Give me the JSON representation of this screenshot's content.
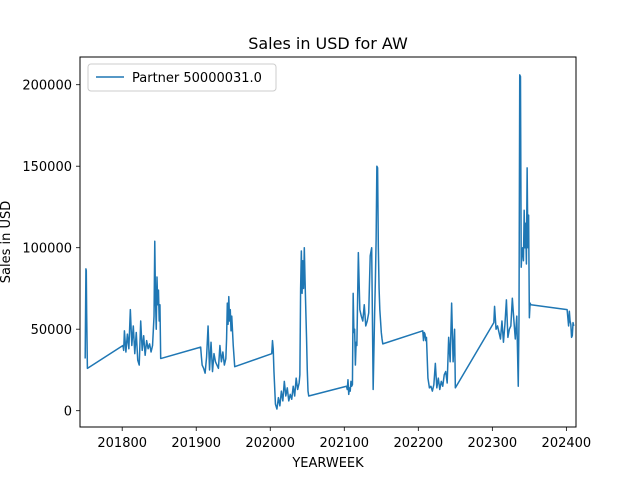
{
  "chart_data": {
    "type": "line",
    "title": "Sales in USD for AW",
    "xlabel": "YEARWEEK",
    "ylabel": "Sales in USD",
    "xlim": [
      201743,
      202413
    ],
    "ylim": [
      -10000,
      217000
    ],
    "xticks": [
      201800,
      201900,
      202000,
      202100,
      202200,
      202300,
      202400
    ],
    "yticks": [
      0,
      50000,
      100000,
      150000,
      200000
    ],
    "xtick_labels": [
      "201800",
      "201900",
      "202000",
      "202100",
      "202200",
      "202300",
      "202400"
    ],
    "ytick_labels": [
      "0",
      "50000",
      "100000",
      "150000",
      "200000"
    ],
    "grid": false,
    "legend": "top-left",
    "series": [
      {
        "name": "Partner 50000031.0",
        "color": "#1f77b4",
        "x": [
          201750,
          201751,
          201751.5,
          201752,
          201753,
          201801,
          201802,
          201803,
          201805,
          201807,
          201809,
          201811,
          201813,
          201815,
          201817,
          201819,
          201821,
          201823,
          201825,
          201827,
          201829,
          201831,
          201833,
          201835,
          201837,
          201839,
          201841,
          201843,
          201844,
          201845,
          201846,
          201847,
          201848,
          201849,
          201850,
          201851,
          201852,
          201906,
          201907,
          201908,
          201910,
          201912,
          201914,
          201916,
          201918,
          201920,
          201922,
          201924,
          201926,
          201928,
          201930,
          201932,
          201934,
          201936,
          201938,
          201940,
          201941,
          201942,
          201943,
          201944,
          201945,
          201946,
          201947,
          201948,
          201950,
          201952,
          202002,
          202003,
          202004,
          202005,
          202007,
          202009,
          202011,
          202013,
          202015,
          202017,
          202019,
          202021,
          202023,
          202025,
          202027,
          202029,
          202031,
          202033,
          202035,
          202037,
          202039,
          202040,
          202041,
          202042,
          202043,
          202044,
          202045,
          202046,
          202047,
          202048,
          202049,
          202050,
          202051,
          202052,
          202103,
          202104,
          202105,
          202106,
          202107,
          202108,
          202109,
          202110,
          202111,
          202112,
          202113,
          202114,
          202115,
          202116,
          202117,
          202119,
          202121,
          202123,
          202125,
          202127,
          202129,
          202131,
          202133,
          202135,
          202137,
          202139,
          202141,
          202142,
          202143,
          202144,
          202145,
          202146,
          202147,
          202148,
          202149,
          202150,
          202151,
          202152,
          202206,
          202207,
          202208,
          202209,
          202210,
          202211,
          202213,
          202215,
          202217,
          202219,
          202221,
          202223,
          202225,
          202227,
          202229,
          202231,
          202233,
          202235,
          202237,
          202239,
          202241,
          202243,
          202245,
          202247,
          202249,
          202250,
          202302,
          202303,
          202305,
          202307,
          202309,
          202311,
          202313,
          202315,
          202317,
          202319,
          202321,
          202323,
          202325,
          202327,
          202329,
          202331,
          202333,
          202335,
          202336,
          202337,
          202338,
          202339,
          202340,
          202341,
          202342,
          202343,
          202344,
          202345,
          202346,
          202347,
          202348,
          202349,
          202350,
          202351,
          202352,
          202401,
          202402,
          202403,
          202404,
          202405,
          202406,
          202407,
          202408,
          202409,
          202410
        ],
        "y": [
          32000,
          87000,
          86000,
          60000,
          26000,
          40000,
          37000,
          49000,
          36000,
          47000,
          38000,
          62000,
          40000,
          52000,
          35000,
          48000,
          31000,
          28000,
          55000,
          37000,
          46000,
          34000,
          43000,
          38000,
          41000,
          36000,
          40000,
          58000,
          104000,
          68000,
          50000,
          82000,
          65000,
          74000,
          55000,
          65000,
          32000,
          39000,
          33000,
          28000,
          26000,
          23000,
          33000,
          52000,
          25000,
          42000,
          24000,
          35000,
          30000,
          28000,
          26000,
          40000,
          30000,
          36000,
          28000,
          32000,
          44000,
          66000,
          53000,
          70000,
          55000,
          62000,
          49000,
          58000,
          40000,
          27000,
          35000,
          43000,
          38000,
          24000,
          4000,
          1000,
          8000,
          3000,
          12000,
          6000,
          18000,
          9000,
          14000,
          6000,
          10000,
          7000,
          15000,
          9000,
          20000,
          13000,
          17000,
          22000,
          75000,
          98000,
          72000,
          92000,
          75000,
          100000,
          80000,
          62000,
          45000,
          25000,
          12000,
          9000,
          15000,
          13000,
          19000,
          10000,
          14000,
          12000,
          18000,
          15000,
          16000,
          72000,
          48000,
          50000,
          28000,
          42000,
          40000,
          97000,
          62000,
          58000,
          55000,
          65000,
          52000,
          55000,
          60000,
          95000,
          100000,
          13000,
          60000,
          80000,
          105000,
          150000,
          149000,
          100000,
          75000,
          62000,
          55000,
          48000,
          44000,
          41000,
          49000,
          43000,
          48000,
          47000,
          43000,
          45000,
          20000,
          14000,
          15000,
          12000,
          16000,
          29000,
          14000,
          20000,
          13000,
          18000,
          15000,
          22000,
          24000,
          17000,
          45000,
          30000,
          66000,
          30000,
          50000,
          14000,
          54000,
          64000,
          50000,
          52000,
          48000,
          44000,
          55000,
          42000,
          53000,
          68000,
          45000,
          50000,
          52000,
          69000,
          56000,
          44000,
          58000,
          15000,
          56000,
          206000,
          205000,
          88000,
          98000,
          100000,
          92000,
          123000,
          100000,
          115000,
          90000,
          149000,
          100000,
          120000,
          57000,
          66000,
          65000,
          62000,
          57000,
          52000,
          61000,
          55000,
          53000,
          45000,
          46000,
          54000,
          52000
        ]
      }
    ]
  }
}
